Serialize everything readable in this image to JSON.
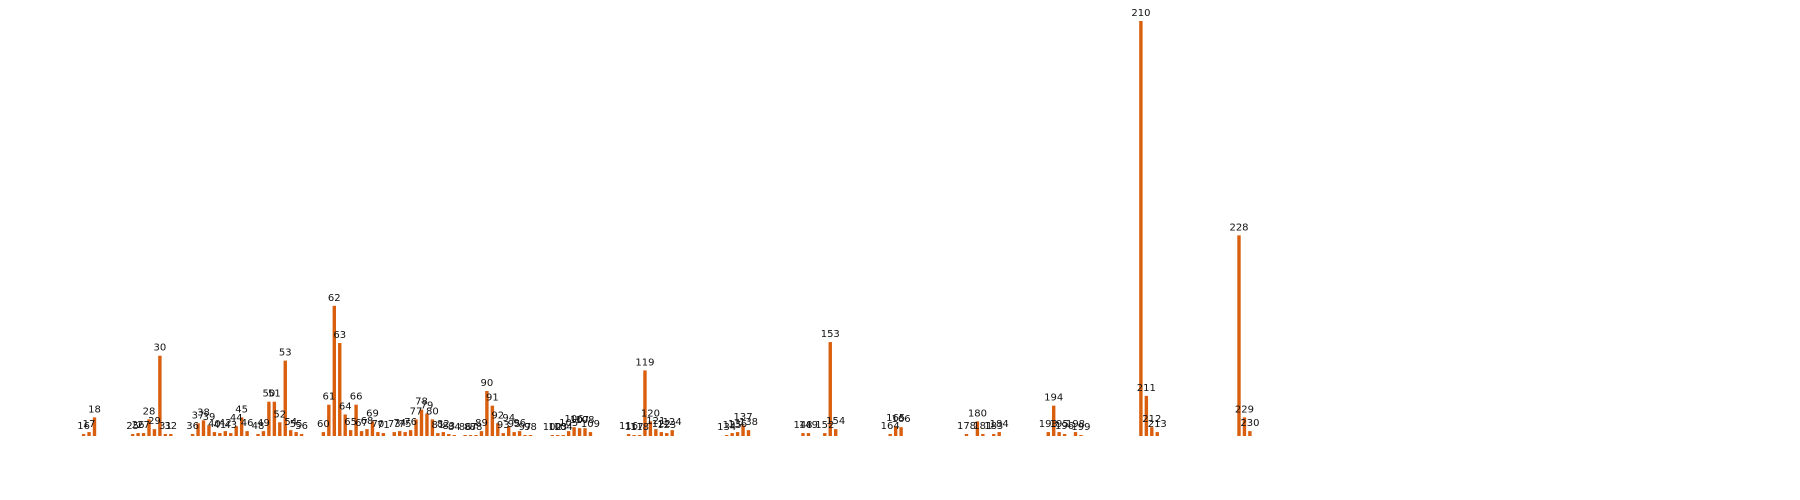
{
  "chart_data": {
    "type": "bar",
    "title": "",
    "xlabel": "",
    "ylabel": "",
    "ylim": [
      0,
      420
    ],
    "xlim": [
      0,
      240
    ],
    "grid": false,
    "legend": "none",
    "bar_color": "#d95f0e",
    "x": [
      16,
      17,
      18,
      25,
      26,
      27,
      28,
      29,
      30,
      31,
      32,
      36,
      37,
      38,
      39,
      40,
      41,
      42,
      43,
      44,
      45,
      46,
      48,
      49,
      50,
      51,
      52,
      53,
      54,
      55,
      56,
      60,
      61,
      62,
      63,
      64,
      65,
      66,
      67,
      68,
      69,
      70,
      71,
      73,
      74,
      75,
      76,
      77,
      78,
      79,
      80,
      81,
      82,
      83,
      84,
      86,
      87,
      88,
      89,
      90,
      91,
      92,
      93,
      94,
      95,
      96,
      97,
      98,
      102,
      103,
      104,
      105,
      106,
      107,
      108,
      109,
      116,
      117,
      118,
      119,
      120,
      121,
      122,
      123,
      124,
      134,
      135,
      136,
      137,
      138,
      148,
      149,
      152,
      153,
      154,
      164,
      165,
      166,
      178,
      180,
      181,
      183,
      184,
      193,
      194,
      195,
      196,
      198,
      199,
      210,
      211,
      212,
      213,
      228,
      229,
      230
    ],
    "values": [
      2,
      4,
      19,
      2,
      3,
      3,
      17,
      7,
      82,
      2,
      2,
      2,
      13,
      16,
      11,
      4,
      3,
      5,
      3,
      10,
      19,
      5,
      2,
      5,
      35,
      35,
      14,
      77,
      6,
      4,
      2,
      4,
      32,
      133,
      95,
      22,
      6,
      32,
      5,
      7,
      15,
      4,
      3,
      4,
      5,
      4,
      6,
      17,
      27,
      23,
      17,
      3,
      4,
      2,
      1,
      1,
      1,
      1,
      5,
      46,
      31,
      13,
      3,
      10,
      4,
      5,
      1,
      1,
      1,
      1,
      1,
      5,
      9,
      8,
      8,
      4,
      2,
      1,
      1,
      67,
      15,
      7,
      4,
      3,
      6,
      1,
      3,
      4,
      11,
      6,
      3,
      3,
      3,
      96,
      7,
      2,
      10,
      9,
      2,
      15,
      2,
      2,
      4,
      4,
      31,
      4,
      2,
      4,
      1,
      424,
      41,
      9,
      4,
      205,
      19,
      5
    ],
    "labels": [
      "16",
      "17",
      "18",
      "25",
      "26",
      "27",
      "28",
      "29",
      "30",
      "31",
      "32",
      "36",
      "37",
      "38",
      "39",
      "40",
      "41",
      "42",
      "43",
      "44",
      "45",
      "46",
      "48",
      "49",
      "50",
      "51",
      "52",
      "53",
      "54",
      "55",
      "56",
      "60",
      "61",
      "62",
      "63",
      "64",
      "65",
      "66",
      "67",
      "68",
      "69",
      "70",
      "71",
      "73",
      "74",
      "75",
      "76",
      "77",
      "78",
      "79",
      "80",
      "81",
      "82",
      "83",
      "84",
      "86",
      "87",
      "88",
      "89",
      "90",
      "91",
      "92",
      "93",
      "94",
      "95",
      "96",
      "97",
      "98",
      "102",
      "103",
      "104",
      "105",
      "106",
      "107",
      "108",
      "109",
      "116",
      "117",
      "118",
      "119",
      "120",
      "121",
      "122",
      "123",
      "124",
      "134",
      "135",
      "136",
      "137",
      "138",
      "148",
      "149",
      "152",
      "153",
      "154",
      "164",
      "165",
      "166",
      "178",
      "180",
      "181",
      "183",
      "184",
      "193",
      "194",
      "195",
      "196",
      "198",
      "199",
      "210",
      "211",
      "212",
      "213",
      "228",
      "229",
      "230"
    ]
  }
}
